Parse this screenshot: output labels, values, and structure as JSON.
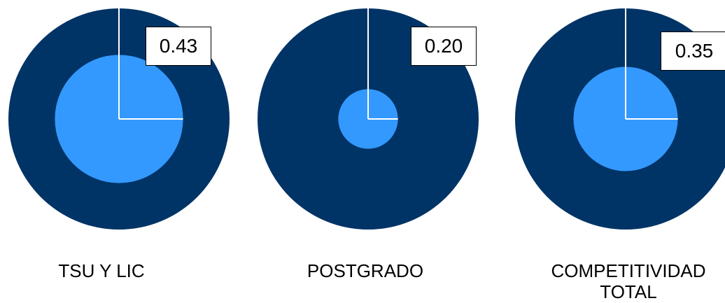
{
  "colors": {
    "outer": "#003366",
    "inner": "#3399FF",
    "line": "#FFFFFF",
    "text": "#000000"
  },
  "chart_data": [
    {
      "type": "pie",
      "value": 0.43,
      "value_label": "0.43",
      "label_lines": [
        "TSU Y LIC"
      ]
    },
    {
      "type": "pie",
      "value": 0.2,
      "value_label": "0.20",
      "label_lines": [
        "POSTGRADO"
      ]
    },
    {
      "type": "pie",
      "value": 0.35,
      "value_label": "0.35",
      "label_lines": [
        "COMPETITIVIDAD",
        "TOTAL"
      ]
    }
  ]
}
